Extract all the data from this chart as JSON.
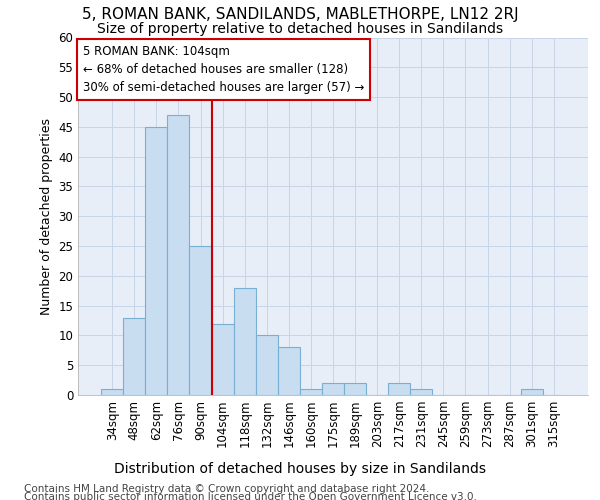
{
  "title": "5, ROMAN BANK, SANDILANDS, MABLETHORPE, LN12 2RJ",
  "subtitle": "Size of property relative to detached houses in Sandilands",
  "xlabel": "Distribution of detached houses by size in Sandilands",
  "ylabel": "Number of detached properties",
  "categories": [
    "34sqm",
    "48sqm",
    "62sqm",
    "76sqm",
    "90sqm",
    "104sqm",
    "118sqm",
    "132sqm",
    "146sqm",
    "160sqm",
    "175sqm",
    "189sqm",
    "203sqm",
    "217sqm",
    "231sqm",
    "245sqm",
    "259sqm",
    "273sqm",
    "287sqm",
    "301sqm",
    "315sqm"
  ],
  "values": [
    1,
    13,
    45,
    47,
    25,
    12,
    18,
    10,
    8,
    1,
    2,
    2,
    0,
    2,
    1,
    0,
    0,
    0,
    0,
    1,
    0
  ],
  "bar_color": "#c8ddf0",
  "bar_edge_color": "#7aafd4",
  "highlight_line_index": 5,
  "highlight_color": "#cc0000",
  "annotation_text": "5 ROMAN BANK: 104sqm\n← 68% of detached houses are smaller (128)\n30% of semi-detached houses are larger (57) →",
  "annotation_box_color": "#ffffff",
  "annotation_box_edge": "#cc0000",
  "ylim": [
    0,
    60
  ],
  "yticks": [
    0,
    5,
    10,
    15,
    20,
    25,
    30,
    35,
    40,
    45,
    50,
    55,
    60
  ],
  "grid_color": "#c8d4e8",
  "background_color": "#ffffff",
  "plot_bg_color": "#e8eef8",
  "footer_line1": "Contains HM Land Registry data © Crown copyright and database right 2024.",
  "footer_line2": "Contains public sector information licensed under the Open Government Licence v3.0.",
  "title_fontsize": 11,
  "subtitle_fontsize": 10,
  "xlabel_fontsize": 10,
  "ylabel_fontsize": 9,
  "tick_fontsize": 8.5,
  "footer_fontsize": 7.5
}
